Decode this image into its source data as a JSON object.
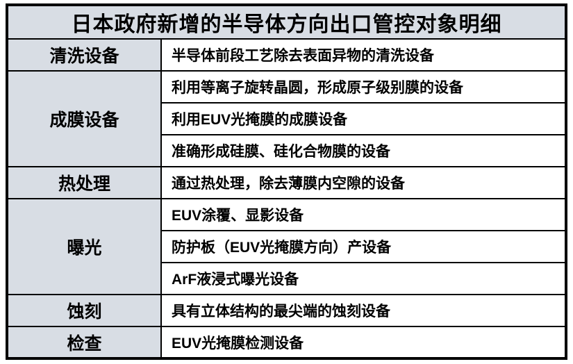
{
  "table": {
    "title": "日本政府新增的半导体方向出口管控对象明细",
    "groups": [
      {
        "category": "清洗设备",
        "items": [
          "半导体前段工艺除去表面异物的清洗设备"
        ]
      },
      {
        "category": "成膜设备",
        "items": [
          "利用等离子旋转晶圆，形成原子级别膜的设备",
          "利用EUV光掩膜的成膜设备",
          "准确形成硅膜、硅化合物膜的设备"
        ]
      },
      {
        "category": "热处理",
        "items": [
          "通过热处理，除去薄膜内空隙的设备"
        ]
      },
      {
        "category": "曝光",
        "items": [
          "EUV涂覆、显影设备",
          "防护板（EUV光掩膜方向）产设备",
          "ArF液浸式曝光设备"
        ]
      },
      {
        "category": "蚀刻",
        "items": [
          "具有立体结构的最尖端的蚀刻设备"
        ]
      },
      {
        "category": "检查",
        "items": [
          "EUV光掩膜检测设备"
        ]
      }
    ],
    "colors": {
      "header_bg": "#d8dde4",
      "body_bg": "#ffffff",
      "border": "#000000",
      "text": "#000000"
    }
  }
}
